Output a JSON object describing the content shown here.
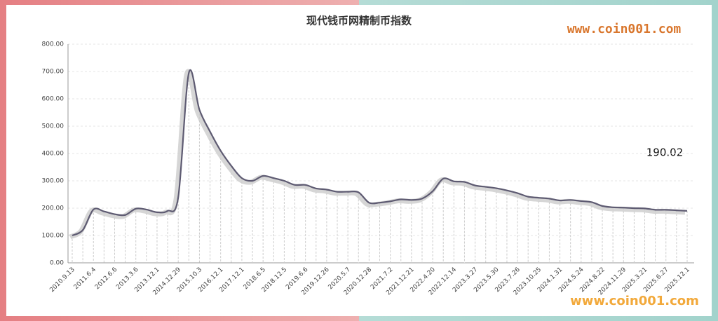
{
  "chart_data": {
    "type": "line",
    "title": "现代钱币网精制币指数",
    "watermarks": [
      "www.coin001.com",
      "www.coin001.com"
    ],
    "annotation": "190.02",
    "categories": [
      "2010.9.13",
      null,
      "2011.6.4",
      null,
      "2012.6.6",
      null,
      "2013.3.6",
      null,
      "2013.12.1",
      null,
      "2014.12.29",
      null,
      "2015.10.3",
      null,
      "2016.12.1",
      null,
      "2017.12.1",
      null,
      "2018.6.5",
      null,
      "2018.12.5",
      null,
      "2019.6.6",
      null,
      "2019.12.26",
      null,
      "2020.5.7",
      null,
      "2020.12.28",
      null,
      "2021.7.2",
      null,
      "2021.12.21",
      null,
      "2022.4.20",
      null,
      "2022.12.14",
      null,
      "2023.3.27",
      null,
      "2023.5.30",
      null,
      "2023.7.26",
      null,
      "2023.10.25",
      null,
      "2024.1.31",
      null,
      "2024.5.24",
      null,
      "2024.8.22",
      null,
      "2024.11.29",
      null,
      "2025.3.21",
      null,
      "2025.6.27",
      null,
      "2025.12.1"
    ],
    "series": [
      {
        "name": "精制币指数",
        "color": "#5e5b72",
        "values": [
          100,
          120,
          195,
          188,
          178,
          175,
          198,
          195,
          185,
          190,
          240,
          695,
          560,
          480,
          410,
          355,
          310,
          300,
          318,
          310,
          300,
          285,
          285,
          272,
          268,
          260,
          260,
          258,
          220,
          220,
          225,
          232,
          230,
          235,
          262,
          308,
          298,
          296,
          283,
          278,
          273,
          265,
          255,
          242,
          238,
          235,
          228,
          230,
          226,
          222,
          208,
          203,
          202,
          200,
          199,
          194,
          194,
          192,
          190.02
        ]
      }
    ],
    "ylim": [
      0,
      800
    ],
    "yticks": [
      {
        "value": 0,
        "label": "0.00"
      },
      {
        "value": 100,
        "label": "100.00"
      },
      {
        "value": 200,
        "label": "200.00"
      },
      {
        "value": 300,
        "label": "300.00"
      },
      {
        "value": 400,
        "label": "400.00"
      },
      {
        "value": 500,
        "label": "500.00"
      },
      {
        "value": 600,
        "label": "600.00"
      },
      {
        "value": 700,
        "label": "700.00"
      },
      {
        "value": 800,
        "label": "800.00"
      }
    ],
    "grid": true
  }
}
